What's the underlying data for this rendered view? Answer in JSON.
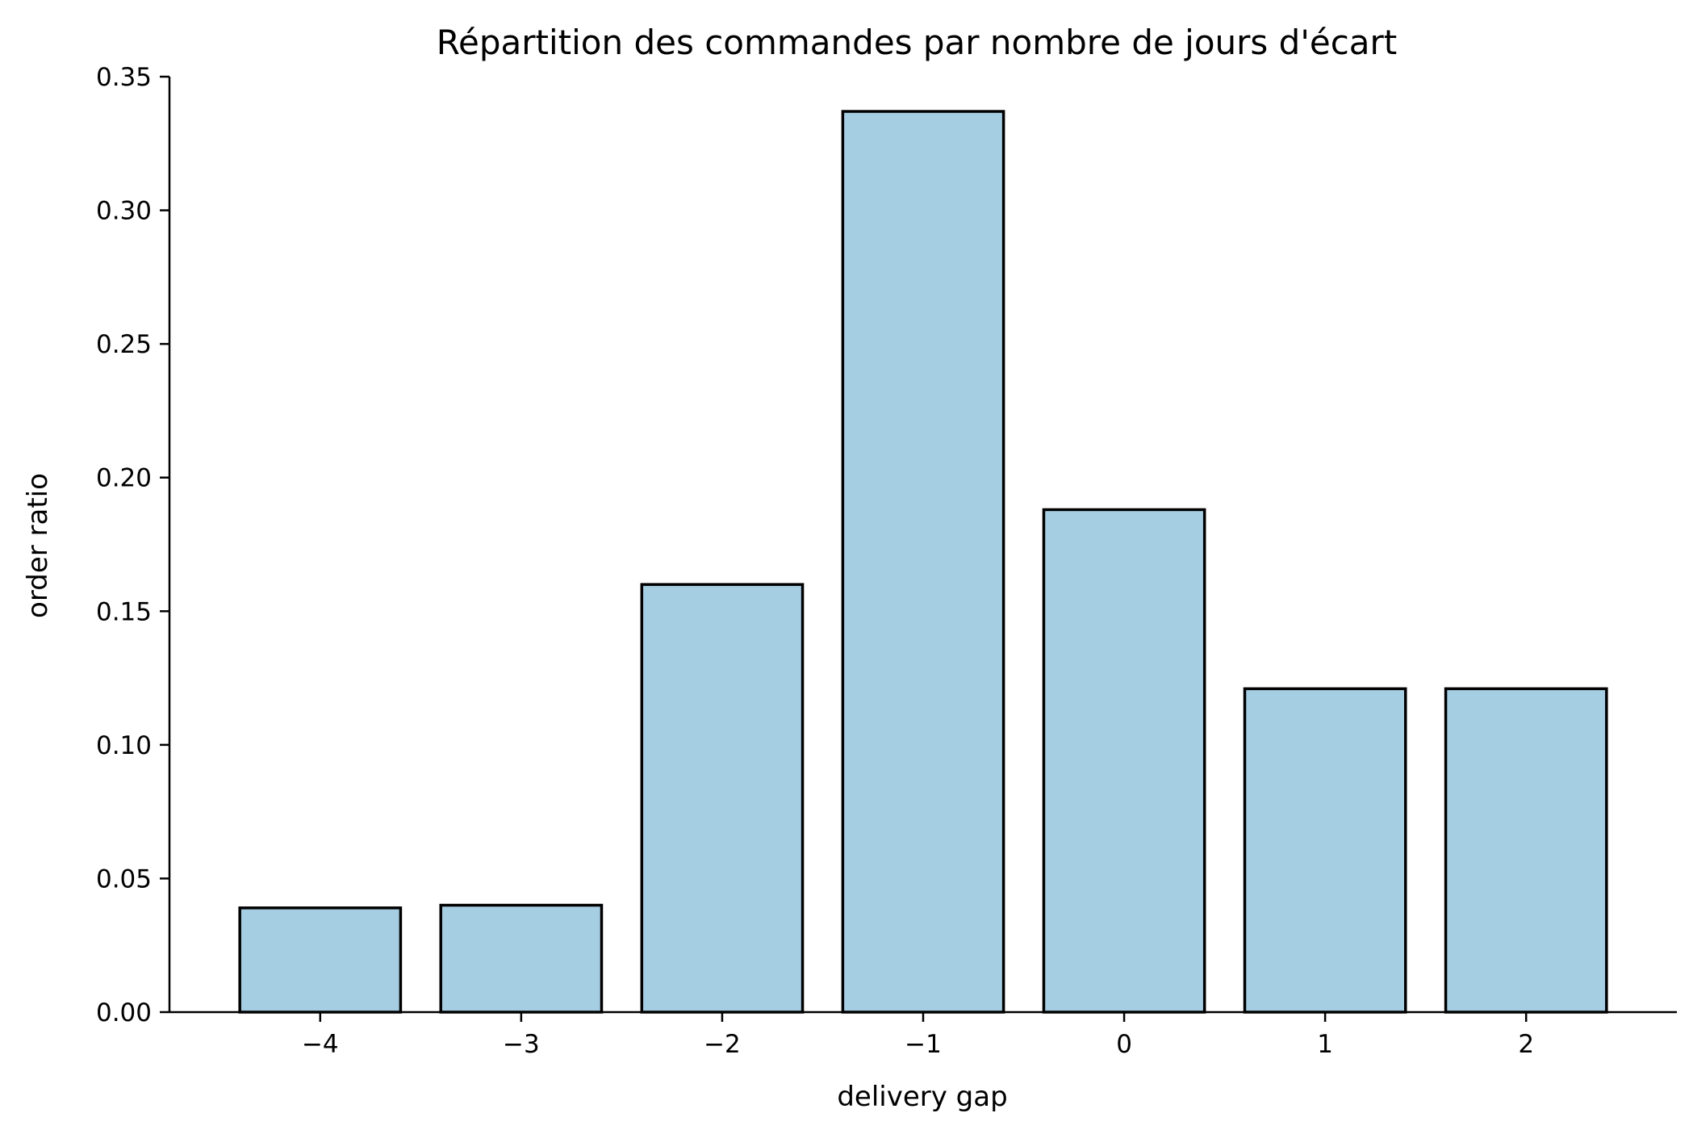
{
  "chart_data": {
    "type": "bar",
    "title": "Répartition des commandes par nombre de jours d'écart",
    "xlabel": "delivery gap",
    "ylabel": "order ratio",
    "categories": [
      "−4",
      "−3",
      "−2",
      "−1",
      "0",
      "1",
      "2"
    ],
    "x": [
      -4,
      -3,
      -2,
      -1,
      0,
      1,
      2
    ],
    "values": [
      0.039,
      0.04,
      0.16,
      0.337,
      0.188,
      0.121,
      0.121
    ],
    "ylim": [
      0,
      0.35
    ],
    "yticks": [
      0.0,
      0.05,
      0.1,
      0.15,
      0.2,
      0.25,
      0.3,
      0.35
    ],
    "ytick_labels": [
      "0.00",
      "0.05",
      "0.10",
      "0.15",
      "0.20",
      "0.25",
      "0.30",
      "0.35"
    ],
    "bar_color": "#a6cee3",
    "edge_color": "#000000",
    "grid": false
  }
}
